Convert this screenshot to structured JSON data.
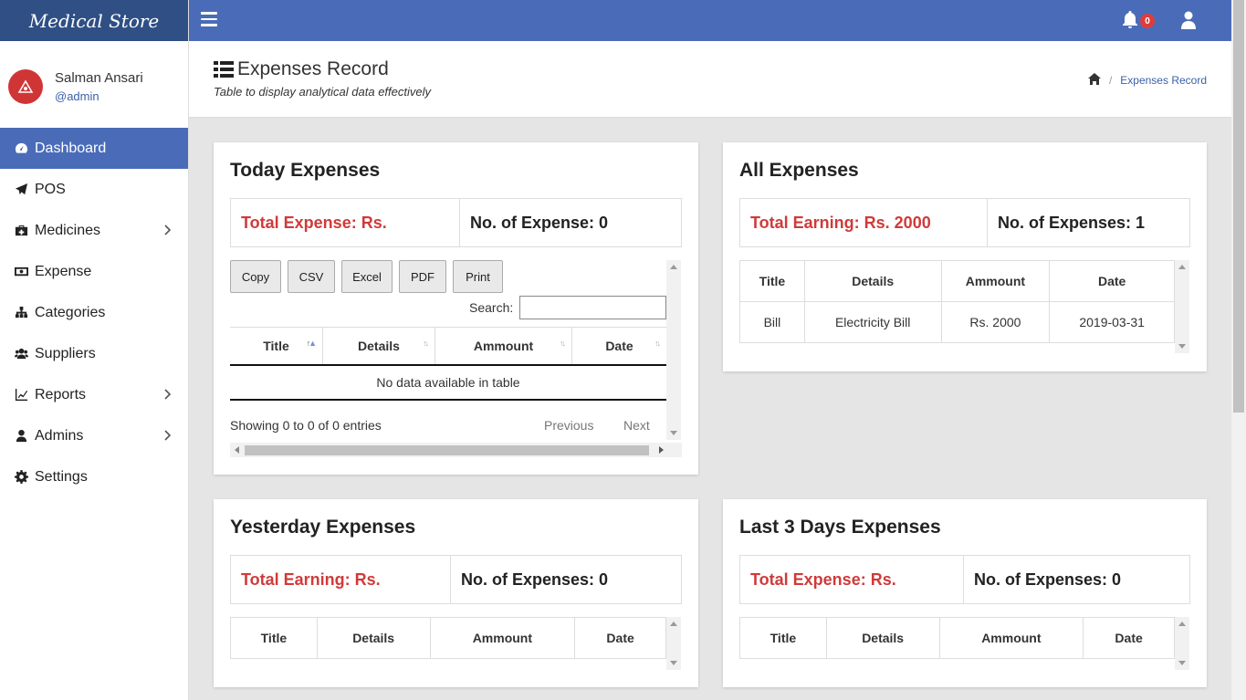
{
  "brand": {
    "name": "Medical Store"
  },
  "user": {
    "name": "Salman Ansari",
    "handle": "@admin",
    "avatar_text": "⎈"
  },
  "sidebar": {
    "items": [
      {
        "label": "Dashboard",
        "icon": "dashboard-icon",
        "active": true
      },
      {
        "label": "POS",
        "icon": "paper-plane-icon"
      },
      {
        "label": "Medicines",
        "icon": "medkit-icon",
        "submenu": true
      },
      {
        "label": "Expense",
        "icon": "money-icon"
      },
      {
        "label": "Categories",
        "icon": "sitemap-icon"
      },
      {
        "label": "Suppliers",
        "icon": "users-icon"
      },
      {
        "label": "Reports",
        "icon": "line-chart-icon",
        "submenu": true
      },
      {
        "label": "Admins",
        "icon": "user-icon",
        "submenu": true
      },
      {
        "label": "Settings",
        "icon": "gear-icon"
      }
    ]
  },
  "topbar": {
    "notification_count": "0"
  },
  "header": {
    "title": "Expenses Record",
    "subtitle": "Table to display analytical data effectively",
    "breadcrumb": "Expenses Record"
  },
  "colors": {
    "primary": "#4a6cb8",
    "brand_bg": "#2f4f85",
    "danger": "#d03a3a"
  },
  "today": {
    "title": "Today Expenses",
    "total": "Total Expense: Rs.",
    "count": "No. of Expense: 0",
    "buttons": [
      "Copy",
      "CSV",
      "Excel",
      "PDF",
      "Print"
    ],
    "search_label": "Search:",
    "columns": [
      "Title",
      "Details",
      "Ammount",
      "Date"
    ],
    "empty": "No data available in table",
    "info": "Showing 0 to 0 of 0 entries",
    "prev": "Previous",
    "next": "Next"
  },
  "all": {
    "title": "All Expenses",
    "total": "Total Earning: Rs. 2000",
    "count": "No. of Expenses: 1",
    "columns": [
      "Title",
      "Details",
      "Ammount",
      "Date"
    ],
    "rows": [
      [
        "Bill",
        "Electricity Bill",
        "Rs. 2000",
        "2019-03-31"
      ]
    ]
  },
  "yesterday": {
    "title": "Yesterday Expenses",
    "total": "Total Earning: Rs.",
    "count": "No. of Expenses: 0",
    "columns": [
      "Title",
      "Details",
      "Ammount",
      "Date"
    ]
  },
  "last3": {
    "title": "Last 3 Days Expenses",
    "total": "Total Expense: Rs.",
    "count": "No. of Expenses: 0",
    "columns": [
      "Title",
      "Details",
      "Ammount",
      "Date"
    ]
  }
}
